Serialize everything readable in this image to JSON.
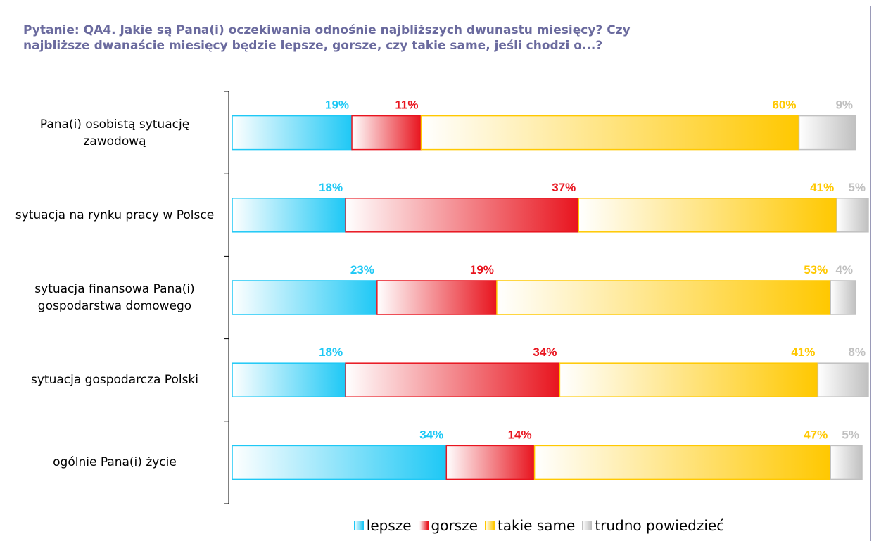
{
  "chart_data": {
    "type": "stacked-bar-horizontal",
    "title": "Pytanie: QA4. Jakie są Pana(i) oczekiwania odnośnie najbliższych dwunastu miesięcy? Czy najbliższe dwanaście miesięcy będzie lepsze, gorsze, czy takie same, jeśli chodzi o...?",
    "categories": [
      "Pana(i) osobistą sytuację zawodową",
      "sytuacja na rynku pracy w Polsce",
      "sytuacja finansowa Pana(i) gospodarstwa domowego",
      "sytuacja gospodarcza Polski",
      "ogólnie Pana(i) życie"
    ],
    "xlim": [
      0,
      100
    ],
    "legend": "bottom",
    "series": [
      {
        "name": "lepsze",
        "color": "#1ec8f5",
        "values": [
          19,
          18,
          23,
          18,
          34
        ],
        "value_labels": [
          "19%",
          "18%",
          "23%",
          "18%",
          "34%"
        ]
      },
      {
        "name": "gorsze",
        "color": "#e8141e",
        "values": [
          11,
          37,
          19,
          34,
          14
        ],
        "value_labels": [
          "11%",
          "37%",
          "19%",
          "34%",
          "14%"
        ]
      },
      {
        "name": "takie same",
        "color": "#ffc800",
        "values": [
          60,
          41,
          53,
          41,
          47
        ],
        "value_labels": [
          "60%",
          "41%",
          "53%",
          "41%",
          "47%"
        ]
      },
      {
        "name": "trudno powiedzieć",
        "color": "#c0c0c0",
        "values": [
          9,
          5,
          4,
          8,
          5
        ],
        "value_labels": [
          "9%",
          "5%",
          "4%",
          "8%",
          "5%"
        ]
      }
    ]
  }
}
